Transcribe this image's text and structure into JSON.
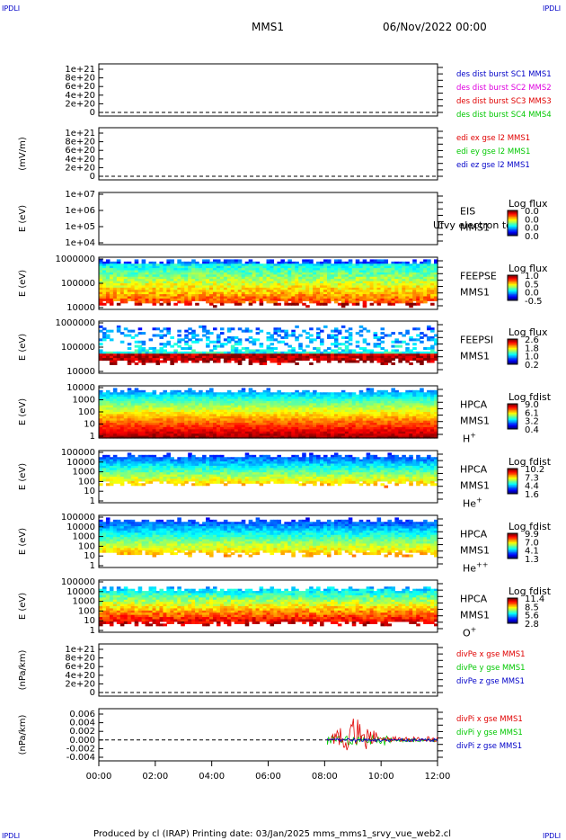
{
  "corner_label": "IPDLI",
  "header": {
    "spacecraft": "MMS1",
    "date": "06/Nov/2022 00:00"
  },
  "footer": "Produced by cl (IRAP)   Printing date: 03/Jan/2025   mms_mms1_srvy_vue_web2.cl",
  "time_axis": [
    "00:00",
    "02:00",
    "04:00",
    "06:00",
    "08:00",
    "10:00",
    "12:00"
  ],
  "colors": {
    "blue": "#0000c8",
    "magenta": "#e000e0",
    "red": "#e00000",
    "green": "#00c800",
    "yellow": "#ffff00",
    "cyan": "#00d0ff"
  },
  "chart_data": [
    {
      "id": "p1",
      "type": "line",
      "ylabel": "",
      "yticks": [
        "1e+21",
        "8e+20",
        "6e+20",
        "4e+20",
        "2e+20",
        "0"
      ],
      "legend": [
        {
          "text": "des dist burst SC1 MMS1",
          "color": "#0000c8"
        },
        {
          "text": "des dist burst SC2 MMS2",
          "color": "#e000e0"
        },
        {
          "text": "des dist burst SC3 MMS3",
          "color": "#e00000"
        },
        {
          "text": "des dist burst SC4 MMS4",
          "color": "#00c800"
        }
      ]
    },
    {
      "id": "p2",
      "type": "line",
      "ylabel": "(mV/m)",
      "yticks": [
        "1e+21",
        "8e+20",
        "6e+20",
        "4e+20",
        "2e+20",
        "0"
      ],
      "legend": [
        {
          "text": "edi ex gse l2 MMS1",
          "color": "#e00000"
        },
        {
          "text": "edi ey gse l2 MMS1",
          "color": "#00c800"
        },
        {
          "text": "edi ez gse l2 MMS1",
          "color": "#0000c8"
        }
      ]
    },
    {
      "id": "p3",
      "type": "heatmap",
      "ylabel": "E (eV)",
      "yticks": [
        "1e+07",
        "1e+06",
        "1e+05",
        "1e+04"
      ],
      "instrument": [
        "EIS",
        "MMS1"
      ],
      "overlay": "Ufvy electron to",
      "cbar_title": "Log flux",
      "cbar_ticks": [
        "0.0",
        "0.0",
        "0.0",
        "0.0"
      ]
    },
    {
      "id": "p4",
      "type": "heatmap",
      "ylabel": "E (eV)",
      "yticks": [
        "1000000",
        "100000",
        "10000"
      ],
      "instrument": [
        "FEEPSE",
        "MMS1"
      ],
      "cbar_title": "Log flux",
      "cbar_ticks": [
        "1.0",
        "0.5",
        "0.0",
        "-0.5"
      ]
    },
    {
      "id": "p5",
      "type": "heatmap",
      "ylabel": "E (eV)",
      "yticks": [
        "1000000",
        "100000",
        "10000"
      ],
      "instrument": [
        "FEEPSI",
        "MMS1"
      ],
      "cbar_title": "Log flux",
      "cbar_ticks": [
        "2.6",
        "1.8",
        "1.0",
        "0.2"
      ]
    },
    {
      "id": "p6",
      "type": "heatmap",
      "ylabel": "E (eV)",
      "yticks": [
        "10000",
        "1000",
        "100",
        "10",
        "1"
      ],
      "instrument": [
        "HPCA",
        "MMS1"
      ],
      "species": "H+",
      "cbar_title": "Log fdist",
      "cbar_ticks": [
        "9.0",
        "6.1",
        "3.2",
        "0.4"
      ]
    },
    {
      "id": "p7",
      "type": "heatmap",
      "ylabel": "E (eV)",
      "yticks": [
        "100000",
        "10000",
        "1000",
        "100",
        "10",
        "1"
      ],
      "instrument": [
        "HPCA",
        "MMS1"
      ],
      "species": "He+",
      "cbar_title": "Log fdist",
      "cbar_ticks": [
        "10.2",
        "7.3",
        "4.4",
        "1.6"
      ]
    },
    {
      "id": "p8",
      "type": "heatmap",
      "ylabel": "E (eV)",
      "yticks": [
        "100000",
        "10000",
        "1000",
        "100",
        "10",
        "1"
      ],
      "instrument": [
        "HPCA",
        "MMS1"
      ],
      "species": "He++",
      "cbar_title": "Log fdist",
      "cbar_ticks": [
        "9.9",
        "7.0",
        "4.1",
        "1.3"
      ]
    },
    {
      "id": "p9",
      "type": "heatmap",
      "ylabel": "E (eV)",
      "yticks": [
        "100000",
        "10000",
        "1000",
        "100",
        "10",
        "1"
      ],
      "instrument": [
        "HPCA",
        "MMS1"
      ],
      "species": "O+",
      "cbar_title": "Log fdist",
      "cbar_ticks": [
        "11.4",
        "8.5",
        "5.6",
        "2.8"
      ]
    },
    {
      "id": "p10",
      "type": "line",
      "ylabel": "(nPa/km)",
      "yticks": [
        "1e+21",
        "8e+20",
        "6e+20",
        "4e+20",
        "2e+20",
        "0"
      ],
      "legend": [
        {
          "text": "divPe x gse MMS1",
          "color": "#e00000"
        },
        {
          "text": "divPe y gse MMS1",
          "color": "#00c800"
        },
        {
          "text": "divPe z gse MMS1",
          "color": "#0000c8"
        }
      ]
    },
    {
      "id": "p11",
      "type": "line",
      "ylabel": "(nPa/km)",
      "yticks": [
        "0.006",
        "0.004",
        "0.002",
        "0.000",
        "-0.002",
        "-0.004"
      ],
      "ylim": [
        -0.0045,
        0.007
      ],
      "data_start_hour": 8.1,
      "legend": [
        {
          "text": "divPi x gse MMS1",
          "color": "#e00000"
        },
        {
          "text": "divPi y gse MMS1",
          "color": "#00c800"
        },
        {
          "text": "divPi z gse MMS1",
          "color": "#0000c8"
        }
      ]
    }
  ]
}
